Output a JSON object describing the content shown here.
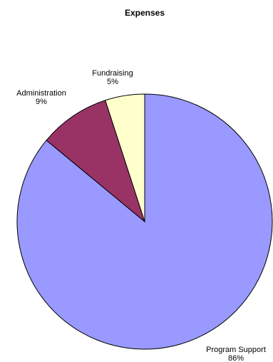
{
  "chart_data": {
    "type": "pie",
    "title": "Expenses",
    "slices": [
      {
        "label": "Program Support",
        "value": 86,
        "value_label": "86%",
        "color": "#9999ff"
      },
      {
        "label": "Administration",
        "value": 9,
        "value_label": "9%",
        "color": "#993366"
      },
      {
        "label": "Fundraising",
        "value": 5,
        "value_label": "5%",
        "color": "#ffffcc"
      }
    ],
    "legend": "none"
  }
}
